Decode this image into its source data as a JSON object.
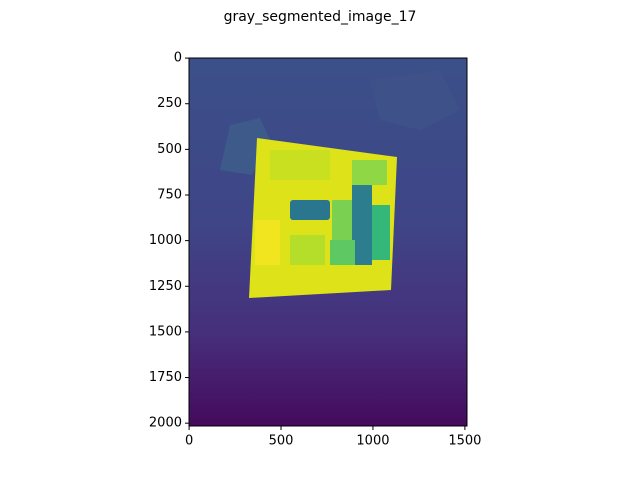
{
  "chart_data": {
    "type": "image",
    "title": "gray_segmented_image_17",
    "xlim": [
      -0.5,
      1511.5
    ],
    "ylim": [
      2015.5,
      -0.5
    ],
    "xticks": [
      0,
      500,
      1000,
      1500
    ],
    "yticks": [
      0,
      250,
      500,
      750,
      1000,
      1250,
      1500,
      1750,
      2000
    ]
  }
}
